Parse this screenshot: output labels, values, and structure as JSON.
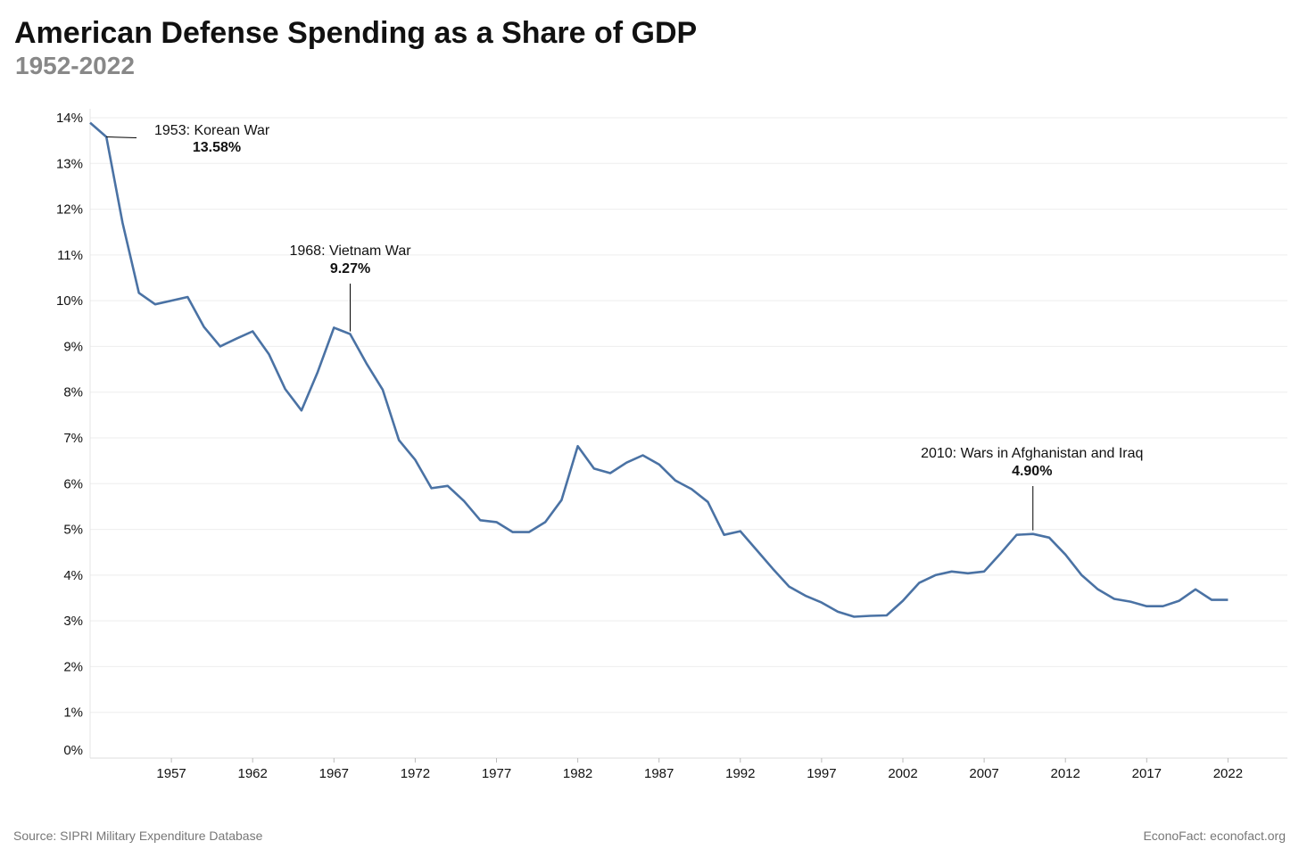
{
  "title": "American Defense Spending as a Share of GDP",
  "subtitle": "1952-2022",
  "source": "Source: SIPRI Military Expenditure Database",
  "credit": "EconoFact: econofact.org",
  "chart_data": {
    "type": "line",
    "title": "American Defense Spending as a Share of GDP",
    "subtitle": "1952-2022",
    "xlabel": "",
    "ylabel": "",
    "xlim": [
      1952,
      2025
    ],
    "ylim": [
      0,
      14
    ],
    "grid": true,
    "line_color": "#4a72a4",
    "x_ticks": [
      1957,
      1962,
      1967,
      1972,
      1977,
      1982,
      1987,
      1992,
      1997,
      2002,
      2007,
      2012,
      2017,
      2022
    ],
    "y_ticks": [
      "0%",
      "1%",
      "2%",
      "3%",
      "4%",
      "5%",
      "6%",
      "7%",
      "8%",
      "9%",
      "10%",
      "11%",
      "12%",
      "13%",
      "14%"
    ],
    "x": [
      1952,
      1953,
      1954,
      1955,
      1956,
      1957,
      1958,
      1959,
      1960,
      1961,
      1962,
      1963,
      1964,
      1965,
      1966,
      1967,
      1968,
      1969,
      1970,
      1971,
      1972,
      1973,
      1974,
      1975,
      1976,
      1977,
      1978,
      1979,
      1980,
      1981,
      1982,
      1983,
      1984,
      1985,
      1986,
      1987,
      1988,
      1989,
      1990,
      1991,
      1992,
      1993,
      1994,
      1995,
      1996,
      1997,
      1998,
      1999,
      2000,
      2001,
      2002,
      2003,
      2004,
      2005,
      2006,
      2007,
      2008,
      2009,
      2010,
      2011,
      2012,
      2013,
      2014,
      2015,
      2016,
      2017,
      2018,
      2019,
      2020,
      2021,
      2022
    ],
    "values": [
      13.89,
      13.58,
      11.7,
      10.17,
      9.92,
      10.0,
      10.08,
      9.43,
      9.0,
      9.17,
      9.33,
      8.83,
      8.07,
      7.6,
      8.44,
      9.41,
      9.27,
      8.63,
      8.05,
      6.95,
      6.52,
      5.9,
      5.95,
      5.62,
      5.2,
      5.16,
      4.94,
      4.94,
      5.16,
      5.64,
      6.82,
      6.33,
      6.23,
      6.46,
      6.62,
      6.42,
      6.07,
      5.88,
      5.6,
      4.88,
      4.96,
      4.55,
      4.14,
      3.75,
      3.55,
      3.4,
      3.2,
      3.09,
      3.11,
      3.12,
      3.44,
      3.83,
      4.0,
      4.08,
      4.04,
      4.08,
      4.47,
      4.88,
      4.9,
      4.82,
      4.45,
      4.0,
      3.69,
      3.48,
      3.42,
      3.32,
      3.32,
      3.44,
      3.69,
      3.46,
      3.46
    ],
    "annotations": [
      {
        "year": 1953,
        "label": "1953: Korean War",
        "value_label": "13.58%"
      },
      {
        "year": 1968,
        "label": "1968: Vietnam War",
        "value_label": "9.27%"
      },
      {
        "year": 2010,
        "label": "2010: Wars in Afghanistan and Iraq",
        "value_label": "4.90%"
      }
    ]
  }
}
